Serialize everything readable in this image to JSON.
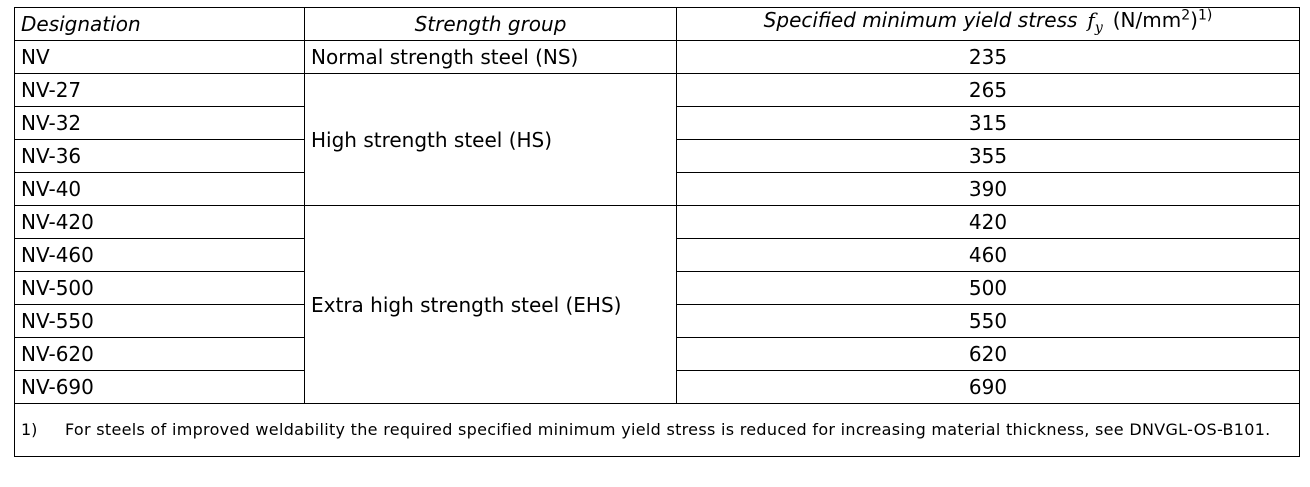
{
  "table": {
    "headers": {
      "designation": "Designation",
      "strength_group": "Strength group",
      "yield_stress": "Specified minimum yield stress",
      "symbol": "f",
      "symbol_sub": "y",
      "unit_prefix": "(N/mm",
      "unit_exp": "2",
      "unit_suffix": ")",
      "footnote_ref": "1)"
    },
    "rows": [
      {
        "designation": "NV",
        "value": "235"
      },
      {
        "designation": "NV-27",
        "value": "265"
      },
      {
        "designation": "NV-32",
        "value": "315"
      },
      {
        "designation": "NV-36",
        "value": "355"
      },
      {
        "designation": "NV-40",
        "value": "390"
      },
      {
        "designation": "NV-420",
        "value": "420"
      },
      {
        "designation": "NV-460",
        "value": "460"
      },
      {
        "designation": "NV-500",
        "value": "500"
      },
      {
        "designation": "NV-550",
        "value": "550"
      },
      {
        "designation": "NV-620",
        "value": "620"
      },
      {
        "designation": "NV-690",
        "value": "690"
      }
    ],
    "groups": [
      {
        "label": "Normal strength steel (NS)",
        "span": 1
      },
      {
        "label": "High strength steel (HS)",
        "span": 4
      },
      {
        "label": "Extra high strength steel (EHS)",
        "span": 6
      }
    ],
    "footnote": {
      "label": "1)",
      "text": "For steels of improved weldability the required specified minimum yield stress is reduced for increasing material thickness, see DNVGL-OS-B101."
    }
  }
}
